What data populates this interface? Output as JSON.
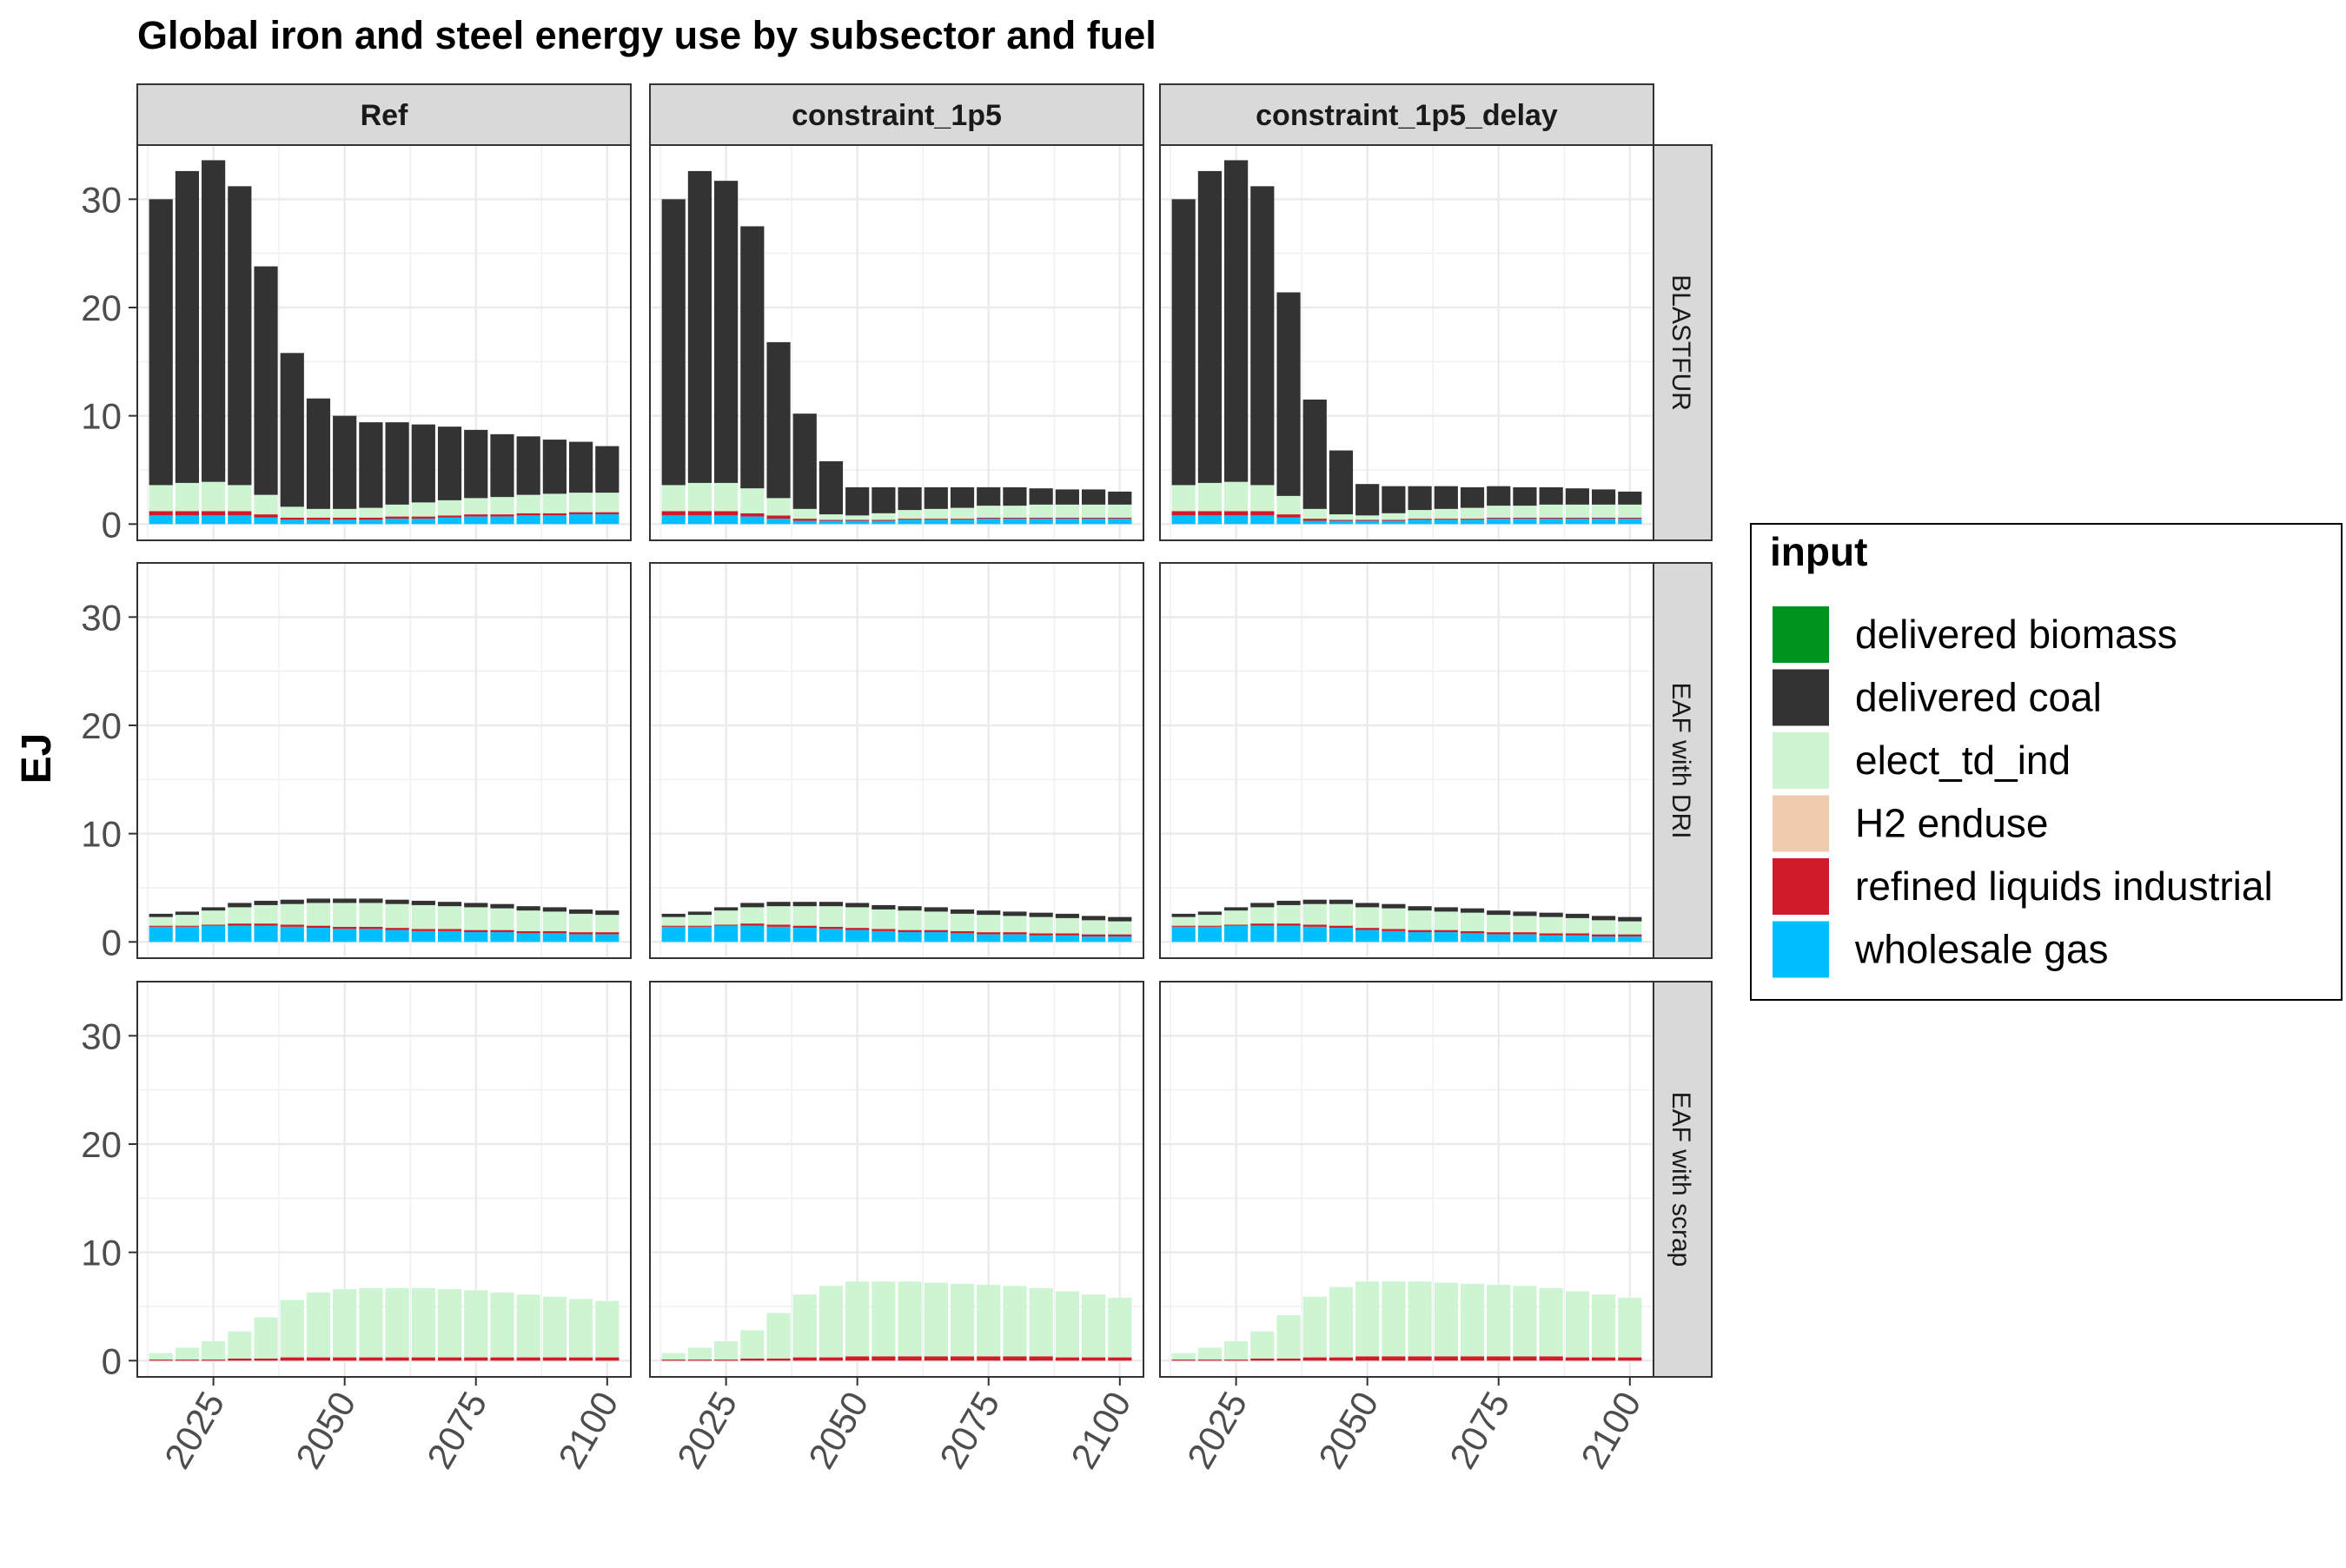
{
  "chart_data": {
    "type": "bar",
    "stacked": true,
    "title": "Global iron and steel energy use by subsector and fuel",
    "ylabel": "EJ",
    "xlabel": "",
    "ylim": [
      -1.5,
      35
    ],
    "yticks": [
      0,
      10,
      20,
      30
    ],
    "xticks": [
      2025,
      2050,
      2075,
      2100
    ],
    "grid": true,
    "legend_position": "right",
    "legend_title": "input",
    "columns": [
      "Ref",
      "constraint_1p5",
      "constraint_1p5_delay"
    ],
    "rows": [
      "BLASTFUR",
      "EAF with DRI",
      "EAF with scrap"
    ],
    "years": [
      2015,
      2020,
      2025,
      2030,
      2035,
      2040,
      2045,
      2050,
      2055,
      2060,
      2065,
      2070,
      2075,
      2080,
      2085,
      2090,
      2095,
      2100
    ],
    "series": [
      {
        "name": "wholesale gas",
        "color": "#00BFFF"
      },
      {
        "name": "refined liquids industrial",
        "color": "#D01C2A"
      },
      {
        "name": "H2 enduse",
        "color": "#EECBAD"
      },
      {
        "name": "elect_td_ind",
        "color": "#CDF5D2"
      },
      {
        "name": "delivered coal",
        "color": "#333333"
      },
      {
        "name": "delivered biomass",
        "color": "#00931D"
      }
    ],
    "panels": {
      "BLASTFUR": {
        "Ref": {
          "wholesale gas": [
            0.8,
            0.8,
            0.8,
            0.8,
            0.6,
            0.4,
            0.4,
            0.4,
            0.4,
            0.5,
            0.5,
            0.6,
            0.7,
            0.7,
            0.8,
            0.8,
            0.9,
            0.9
          ],
          "refined liquids industrial": [
            0.4,
            0.4,
            0.4,
            0.4,
            0.3,
            0.2,
            0.2,
            0.2,
            0.2,
            0.2,
            0.2,
            0.2,
            0.2,
            0.2,
            0.2,
            0.2,
            0.2,
            0.2
          ],
          "H2 enduse": [
            0,
            0,
            0,
            0,
            0,
            0,
            0,
            0,
            0,
            0,
            0,
            0,
            0,
            0,
            0,
            0,
            0,
            0
          ],
          "elect_td_ind": [
            2.4,
            2.6,
            2.7,
            2.4,
            1.8,
            1.0,
            0.8,
            0.8,
            0.9,
            1.1,
            1.3,
            1.4,
            1.5,
            1.6,
            1.7,
            1.8,
            1.8,
            1.8
          ],
          "delivered coal": [
            26.4,
            28.8,
            29.7,
            27.6,
            21.1,
            14.2,
            10.2,
            8.6,
            7.9,
            7.6,
            7.2,
            6.8,
            6.3,
            5.8,
            5.4,
            5.0,
            4.7,
            4.3
          ],
          "delivered biomass": [
            0,
            0,
            0,
            0,
            0,
            0,
            0,
            0,
            0,
            0,
            0,
            0,
            0,
            0,
            0,
            0,
            0,
            0
          ]
        },
        "constraint_1p5": {
          "wholesale gas": [
            0.8,
            0.8,
            0.8,
            0.7,
            0.5,
            0.3,
            0.3,
            0.3,
            0.3,
            0.4,
            0.4,
            0.4,
            0.5,
            0.5,
            0.5,
            0.5,
            0.5,
            0.5
          ],
          "refined liquids industrial": [
            0.4,
            0.4,
            0.4,
            0.3,
            0.3,
            0.2,
            0.1,
            0.1,
            0.1,
            0.1,
            0.1,
            0.1,
            0.1,
            0.1,
            0.1,
            0.1,
            0.1,
            0.1
          ],
          "H2 enduse": [
            0,
            0,
            0,
            0,
            0,
            0,
            0,
            0,
            0,
            0,
            0,
            0,
            0,
            0,
            0,
            0,
            0,
            0
          ],
          "elect_td_ind": [
            2.4,
            2.6,
            2.6,
            2.3,
            1.6,
            0.9,
            0.5,
            0.4,
            0.6,
            0.8,
            0.9,
            1.0,
            1.1,
            1.1,
            1.2,
            1.2,
            1.2,
            1.2
          ],
          "delivered coal": [
            26.4,
            28.8,
            27.9,
            24.2,
            14.4,
            8.8,
            4.9,
            2.6,
            2.4,
            2.1,
            2.0,
            1.9,
            1.7,
            1.7,
            1.5,
            1.4,
            1.4,
            1.2
          ],
          "delivered biomass": [
            0,
            0,
            0,
            0,
            0,
            0,
            0,
            0,
            0,
            0,
            0,
            0,
            0,
            0,
            0,
            0,
            0,
            0
          ]
        },
        "constraint_1p5_delay": {
          "wholesale gas": [
            0.8,
            0.8,
            0.8,
            0.8,
            0.6,
            0.3,
            0.3,
            0.3,
            0.3,
            0.4,
            0.4,
            0.4,
            0.5,
            0.5,
            0.5,
            0.5,
            0.5,
            0.5
          ],
          "refined liquids industrial": [
            0.4,
            0.4,
            0.4,
            0.4,
            0.3,
            0.2,
            0.1,
            0.1,
            0.1,
            0.1,
            0.1,
            0.1,
            0.1,
            0.1,
            0.1,
            0.1,
            0.1,
            0.1
          ],
          "H2 enduse": [
            0,
            0,
            0,
            0,
            0,
            0,
            0,
            0,
            0,
            0,
            0,
            0,
            0,
            0,
            0,
            0,
            0,
            0
          ],
          "elect_td_ind": [
            2.4,
            2.6,
            2.7,
            2.4,
            1.7,
            0.9,
            0.5,
            0.4,
            0.6,
            0.8,
            0.9,
            1.0,
            1.1,
            1.1,
            1.2,
            1.2,
            1.2,
            1.2
          ],
          "delivered coal": [
            26.4,
            28.8,
            29.7,
            27.6,
            18.8,
            10.1,
            5.9,
            2.9,
            2.5,
            2.2,
            2.1,
            1.9,
            1.8,
            1.7,
            1.6,
            1.5,
            1.4,
            1.2
          ],
          "delivered biomass": [
            0,
            0,
            0,
            0,
            0,
            0,
            0,
            0,
            0,
            0,
            0,
            0,
            0,
            0,
            0,
            0,
            0,
            0
          ]
        }
      },
      "EAF with DRI": {
        "Ref": {
          "wholesale gas": [
            1.4,
            1.4,
            1.5,
            1.5,
            1.5,
            1.4,
            1.3,
            1.2,
            1.2,
            1.1,
            1.0,
            1.0,
            0.9,
            0.9,
            0.8,
            0.8,
            0.7,
            0.7
          ],
          "refined liquids industrial": [
            0.1,
            0.1,
            0.1,
            0.2,
            0.2,
            0.2,
            0.2,
            0.2,
            0.2,
            0.2,
            0.2,
            0.2,
            0.2,
            0.2,
            0.2,
            0.2,
            0.2,
            0.2
          ],
          "H2 enduse": [
            0,
            0,
            0,
            0,
            0,
            0,
            0,
            0,
            0,
            0,
            0,
            0,
            0,
            0,
            0,
            0,
            0,
            0
          ],
          "elect_td_ind": [
            0.8,
            1.0,
            1.3,
            1.5,
            1.7,
            1.9,
            2.1,
            2.2,
            2.2,
            2.2,
            2.2,
            2.1,
            2.1,
            2.0,
            1.9,
            1.8,
            1.7,
            1.6
          ],
          "delivered coal": [
            0.3,
            0.3,
            0.3,
            0.4,
            0.4,
            0.4,
            0.4,
            0.4,
            0.4,
            0.4,
            0.4,
            0.4,
            0.4,
            0.4,
            0.4,
            0.4,
            0.4,
            0.4
          ],
          "delivered biomass": [
            0,
            0,
            0,
            0,
            0,
            0,
            0,
            0,
            0,
            0,
            0,
            0,
            0,
            0,
            0,
            0,
            0,
            0
          ]
        },
        "constraint_1p5": {
          "wholesale gas": [
            1.4,
            1.4,
            1.5,
            1.5,
            1.4,
            1.3,
            1.2,
            1.1,
            1.0,
            0.9,
            0.9,
            0.8,
            0.7,
            0.7,
            0.6,
            0.6,
            0.5,
            0.5
          ],
          "refined liquids industrial": [
            0.1,
            0.1,
            0.1,
            0.2,
            0.2,
            0.2,
            0.2,
            0.2,
            0.2,
            0.2,
            0.2,
            0.2,
            0.2,
            0.2,
            0.2,
            0.2,
            0.2,
            0.2
          ],
          "H2 enduse": [
            0,
            0,
            0,
            0,
            0,
            0,
            0,
            0,
            0,
            0,
            0,
            0,
            0,
            0,
            0,
            0,
            0,
            0
          ],
          "elect_td_ind": [
            0.8,
            1.0,
            1.3,
            1.5,
            1.7,
            1.8,
            1.9,
            1.9,
            1.8,
            1.8,
            1.7,
            1.6,
            1.6,
            1.5,
            1.5,
            1.4,
            1.3,
            1.2
          ],
          "delivered coal": [
            0.3,
            0.3,
            0.3,
            0.4,
            0.4,
            0.4,
            0.4,
            0.4,
            0.4,
            0.4,
            0.4,
            0.4,
            0.4,
            0.4,
            0.4,
            0.4,
            0.4,
            0.4
          ],
          "delivered biomass": [
            0,
            0,
            0,
            0,
            0,
            0,
            0,
            0,
            0,
            0,
            0,
            0,
            0,
            0,
            0,
            0,
            0,
            0
          ]
        },
        "constraint_1p5_delay": {
          "wholesale gas": [
            1.4,
            1.4,
            1.5,
            1.5,
            1.5,
            1.4,
            1.3,
            1.1,
            1.0,
            0.9,
            0.9,
            0.8,
            0.7,
            0.7,
            0.6,
            0.6,
            0.5,
            0.5
          ],
          "refined liquids industrial": [
            0.1,
            0.1,
            0.1,
            0.2,
            0.2,
            0.2,
            0.2,
            0.2,
            0.2,
            0.2,
            0.2,
            0.2,
            0.2,
            0.2,
            0.2,
            0.2,
            0.2,
            0.2
          ],
          "H2 enduse": [
            0,
            0,
            0,
            0,
            0,
            0,
            0,
            0,
            0,
            0,
            0,
            0,
            0,
            0,
            0,
            0,
            0,
            0
          ],
          "elect_td_ind": [
            0.8,
            1.0,
            1.3,
            1.5,
            1.7,
            1.9,
            2.0,
            1.9,
            1.9,
            1.8,
            1.7,
            1.7,
            1.6,
            1.5,
            1.5,
            1.4,
            1.3,
            1.2
          ],
          "delivered coal": [
            0.3,
            0.3,
            0.3,
            0.4,
            0.4,
            0.4,
            0.4,
            0.4,
            0.4,
            0.4,
            0.4,
            0.4,
            0.4,
            0.4,
            0.4,
            0.4,
            0.4,
            0.4
          ],
          "delivered biomass": [
            0,
            0,
            0,
            0,
            0,
            0,
            0,
            0,
            0,
            0,
            0,
            0,
            0,
            0,
            0,
            0,
            0,
            0
          ]
        }
      },
      "EAF with scrap": {
        "Ref": {
          "wholesale gas": [
            0,
            0,
            0,
            0,
            0,
            0,
            0,
            0,
            0,
            0,
            0,
            0,
            0,
            0,
            0,
            0,
            0,
            0
          ],
          "refined liquids industrial": [
            0.1,
            0.1,
            0.1,
            0.2,
            0.2,
            0.3,
            0.3,
            0.3,
            0.3,
            0.3,
            0.3,
            0.3,
            0.3,
            0.3,
            0.3,
            0.3,
            0.3,
            0.3
          ],
          "H2 enduse": [
            0,
            0,
            0,
            0,
            0,
            0,
            0,
            0,
            0,
            0,
            0,
            0,
            0,
            0,
            0,
            0,
            0,
            0
          ],
          "elect_td_ind": [
            0.6,
            1.1,
            1.7,
            2.5,
            3.8,
            5.3,
            6.0,
            6.3,
            6.4,
            6.4,
            6.4,
            6.3,
            6.2,
            6.0,
            5.8,
            5.6,
            5.4,
            5.2
          ],
          "delivered coal": [
            0,
            0,
            0,
            0,
            0,
            0,
            0,
            0,
            0,
            0,
            0,
            0,
            0,
            0,
            0,
            0,
            0,
            0
          ],
          "delivered biomass": [
            0,
            0,
            0,
            0,
            0,
            0,
            0,
            0,
            0,
            0,
            0,
            0,
            0,
            0,
            0,
            0,
            0,
            0
          ]
        },
        "constraint_1p5": {
          "wholesale gas": [
            0,
            0,
            0,
            0,
            0,
            0,
            0,
            0,
            0,
            0,
            0,
            0,
            0,
            0,
            0,
            0,
            0,
            0
          ],
          "refined liquids industrial": [
            0.1,
            0.1,
            0.1,
            0.2,
            0.2,
            0.3,
            0.3,
            0.4,
            0.4,
            0.4,
            0.4,
            0.4,
            0.4,
            0.4,
            0.4,
            0.3,
            0.3,
            0.3
          ],
          "H2 enduse": [
            0,
            0,
            0,
            0,
            0,
            0,
            0,
            0,
            0,
            0,
            0,
            0,
            0,
            0,
            0,
            0,
            0,
            0
          ],
          "elect_td_ind": [
            0.6,
            1.1,
            1.7,
            2.6,
            4.2,
            5.8,
            6.6,
            6.9,
            6.9,
            6.9,
            6.8,
            6.7,
            6.6,
            6.5,
            6.3,
            6.1,
            5.8,
            5.5
          ],
          "delivered coal": [
            0,
            0,
            0,
            0,
            0,
            0,
            0,
            0,
            0,
            0,
            0,
            0,
            0,
            0,
            0,
            0,
            0,
            0
          ],
          "delivered biomass": [
            0,
            0,
            0,
            0,
            0,
            0,
            0,
            0,
            0,
            0,
            0,
            0,
            0,
            0,
            0,
            0,
            0,
            0
          ]
        },
        "constraint_1p5_delay": {
          "wholesale gas": [
            0,
            0,
            0,
            0,
            0,
            0,
            0,
            0,
            0,
            0,
            0,
            0,
            0,
            0,
            0,
            0,
            0,
            0
          ],
          "refined liquids industrial": [
            0.1,
            0.1,
            0.1,
            0.2,
            0.2,
            0.3,
            0.3,
            0.4,
            0.4,
            0.4,
            0.4,
            0.4,
            0.4,
            0.4,
            0.4,
            0.3,
            0.3,
            0.3
          ],
          "H2 enduse": [
            0,
            0,
            0,
            0,
            0,
            0,
            0,
            0,
            0,
            0,
            0,
            0,
            0,
            0,
            0,
            0,
            0,
            0
          ],
          "elect_td_ind": [
            0.6,
            1.1,
            1.7,
            2.5,
            4.0,
            5.6,
            6.5,
            6.9,
            6.9,
            6.9,
            6.8,
            6.7,
            6.6,
            6.5,
            6.3,
            6.1,
            5.8,
            5.5
          ],
          "delivered coal": [
            0,
            0,
            0,
            0,
            0,
            0,
            0,
            0,
            0,
            0,
            0,
            0,
            0,
            0,
            0,
            0,
            0,
            0
          ],
          "delivered biomass": [
            0,
            0,
            0,
            0,
            0,
            0,
            0,
            0,
            0,
            0,
            0,
            0,
            0,
            0,
            0,
            0,
            0,
            0
          ]
        }
      }
    },
    "legend_order": [
      "delivered biomass",
      "delivered coal",
      "elect_td_ind",
      "H2 enduse",
      "refined liquids industrial",
      "wholesale gas"
    ]
  }
}
